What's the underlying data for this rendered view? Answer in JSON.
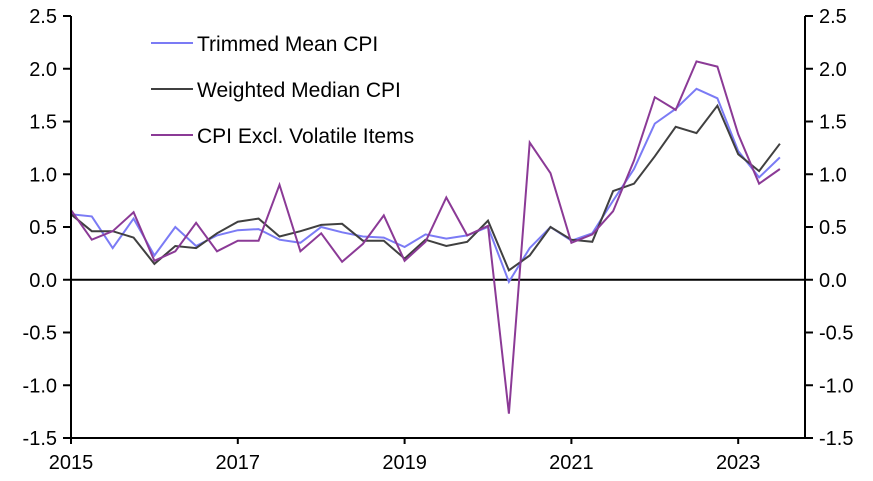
{
  "chart_data": {
    "type": "line",
    "title": "",
    "xlabel": "",
    "ylabel": "",
    "ylim": [
      -1.5,
      2.5
    ],
    "y_ticks": [
      2.5,
      2.0,
      1.5,
      1.0,
      0.5,
      0.0,
      -0.5,
      -1.0,
      -1.5
    ],
    "y_tick_labels": [
      "2.5",
      "2.0",
      "1.5",
      "1.0",
      "0.5",
      "0.0",
      "-0.5",
      "-1.0",
      "-1.5"
    ],
    "x_range": [
      2015.0,
      2023.75
    ],
    "x_ticks": [
      2015,
      2017,
      2019,
      2021,
      2023
    ],
    "x_tick_labels": [
      "2015",
      "2017",
      "2019",
      "2021",
      "2023"
    ],
    "secondary_y_axis": true,
    "grid": false,
    "legend_position": "top-left",
    "x": [
      2015.0,
      2015.25,
      2015.5,
      2015.75,
      2016.0,
      2016.25,
      2016.5,
      2016.75,
      2017.0,
      2017.25,
      2017.5,
      2017.75,
      2018.0,
      2018.25,
      2018.5,
      2018.75,
      2019.0,
      2019.25,
      2019.5,
      2019.75,
      2020.0,
      2020.25,
      2020.5,
      2020.75,
      2021.0,
      2021.25,
      2021.5,
      2021.75,
      2022.0,
      2022.25,
      2022.5,
      2022.75,
      2023.0,
      2023.25,
      2023.5
    ],
    "series": [
      {
        "name": "Trimmed Mean CPI",
        "color": "#7B7BF5",
        "values": [
          0.62,
          0.6,
          0.3,
          0.58,
          0.23,
          0.5,
          0.32,
          0.42,
          0.47,
          0.48,
          0.38,
          0.35,
          0.5,
          0.45,
          0.41,
          0.4,
          0.31,
          0.43,
          0.39,
          0.42,
          0.5,
          -0.02,
          0.3,
          0.5,
          0.37,
          0.44,
          0.75,
          1.05,
          1.48,
          1.62,
          1.81,
          1.72,
          1.22,
          0.97,
          1.16
        ]
      },
      {
        "name": "Weighted Median CPI",
        "color": "#404040",
        "values": [
          0.62,
          0.46,
          0.46,
          0.4,
          0.15,
          0.32,
          0.3,
          0.44,
          0.55,
          0.58,
          0.41,
          0.46,
          0.52,
          0.53,
          0.37,
          0.37,
          0.2,
          0.38,
          0.32,
          0.36,
          0.56,
          0.09,
          0.23,
          0.5,
          0.38,
          0.36,
          0.84,
          0.91,
          1.17,
          1.45,
          1.39,
          1.65,
          1.19,
          1.03,
          1.29
        ]
      },
      {
        "name": "CPI Excl. Volatile Items",
        "color": "#8B3A96",
        "values": [
          0.66,
          0.38,
          0.46,
          0.64,
          0.18,
          0.27,
          0.54,
          0.27,
          0.37,
          0.37,
          0.9,
          0.27,
          0.44,
          0.17,
          0.34,
          0.61,
          0.18,
          0.36,
          0.78,
          0.42,
          0.51,
          -1.27,
          1.3,
          1.01,
          0.35,
          0.43,
          0.65,
          1.13,
          1.73,
          1.61,
          2.07,
          2.02,
          1.38,
          0.91,
          1.05
        ]
      }
    ]
  }
}
